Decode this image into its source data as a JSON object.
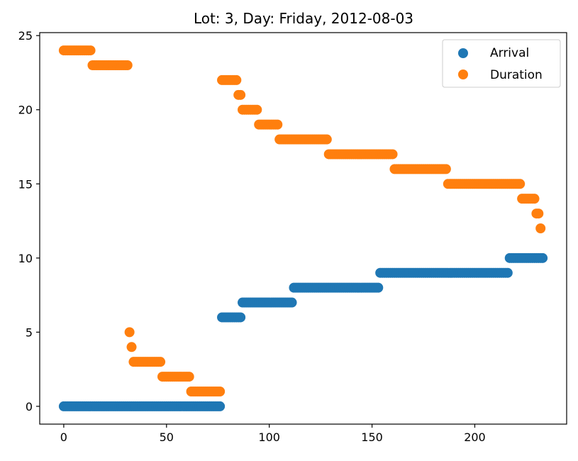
{
  "chart_data": {
    "type": "scatter",
    "title": "Lot: 3, Day: Friday, 2012-08-03",
    "xlabel": "",
    "ylabel": "",
    "xlim": [
      -11.7,
      244.7
    ],
    "ylim": [
      -1.2,
      25.2
    ],
    "xticks": [
      0,
      50,
      100,
      150,
      200
    ],
    "yticks": [
      0,
      5,
      10,
      15,
      20,
      25
    ],
    "grid": false,
    "legend_position": "top-right",
    "series": [
      {
        "name": "Arrival",
        "color": "#1f77b4",
        "segments": [
          {
            "y": 0,
            "x_start": 0,
            "x_end": 76
          },
          {
            "y": 6,
            "x_start": 77,
            "x_end": 86
          },
          {
            "y": 7,
            "x_start": 87,
            "x_end": 111
          },
          {
            "y": 8,
            "x_start": 112,
            "x_end": 153
          },
          {
            "y": 9,
            "x_start": 154,
            "x_end": 216
          },
          {
            "y": 10,
            "x_start": 217,
            "x_end": 233
          }
        ]
      },
      {
        "name": "Duration",
        "color": "#ff7f0e",
        "segments": [
          {
            "y": 24,
            "x_start": 0,
            "x_end": 13
          },
          {
            "y": 23,
            "x_start": 14,
            "x_end": 31
          },
          {
            "y": 5,
            "x_start": 32,
            "x_end": 32
          },
          {
            "y": 4,
            "x_start": 33,
            "x_end": 33
          },
          {
            "y": 3,
            "x_start": 34,
            "x_end": 47
          },
          {
            "y": 2,
            "x_start": 48,
            "x_end": 61
          },
          {
            "y": 1,
            "x_start": 62,
            "x_end": 76
          },
          {
            "y": 22,
            "x_start": 77,
            "x_end": 84
          },
          {
            "y": 21,
            "x_start": 85,
            "x_end": 86
          },
          {
            "y": 20,
            "x_start": 87,
            "x_end": 94
          },
          {
            "y": 19,
            "x_start": 95,
            "x_end": 104
          },
          {
            "y": 18,
            "x_start": 105,
            "x_end": 128
          },
          {
            "y": 17,
            "x_start": 129,
            "x_end": 160
          },
          {
            "y": 16,
            "x_start": 161,
            "x_end": 186
          },
          {
            "y": 15,
            "x_start": 187,
            "x_end": 222
          },
          {
            "y": 14,
            "x_start": 223,
            "x_end": 229
          },
          {
            "y": 13,
            "x_start": 230,
            "x_end": 231
          },
          {
            "y": 12,
            "x_start": 232,
            "x_end": 232
          }
        ]
      }
    ]
  }
}
